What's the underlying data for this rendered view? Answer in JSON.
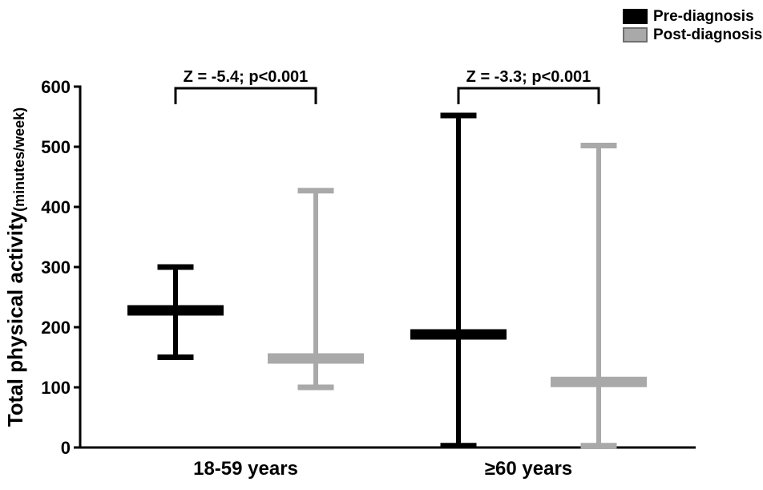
{
  "figure": {
    "background": "#ffffff"
  },
  "legend": {
    "items": [
      {
        "label": "Pre-diagnosis",
        "color": "#000000"
      },
      {
        "label": "Post-diagnosis",
        "color": "#a9a9a9"
      }
    ]
  },
  "chart_data": {
    "type": "error-bar",
    "title": "",
    "ylabel": "Total physical activity",
    "ylabel_unit": "(minutes/week)",
    "xlabel": "",
    "ylim": [
      0,
      600
    ],
    "yticks": [
      0,
      100,
      200,
      300,
      400,
      500,
      600
    ],
    "grid": false,
    "legend_position": "top-right",
    "categories": [
      "18-59 years",
      "≥60 years"
    ],
    "series": [
      {
        "name": "Pre-diagnosis",
        "color": "#000000",
        "values": [
          {
            "category": "18-59 years",
            "median": 228,
            "upper": 300,
            "lower": 150
          },
          {
            "category": "≥60 years",
            "median": 188,
            "upper": 552,
            "lower": 3
          }
        ]
      },
      {
        "name": "Post-diagnosis",
        "color": "#a9a9a9",
        "values": [
          {
            "category": "18-59 years",
            "median": 148,
            "upper": 427,
            "lower": 100
          },
          {
            "category": "≥60 years",
            "median": 109,
            "upper": 502,
            "lower": 3
          }
        ]
      }
    ],
    "annotations": [
      {
        "text": "Z = -5.4; p<0.001",
        "group": 0
      },
      {
        "text": "Z = -3.3; p<0.001",
        "group": 1
      }
    ]
  }
}
